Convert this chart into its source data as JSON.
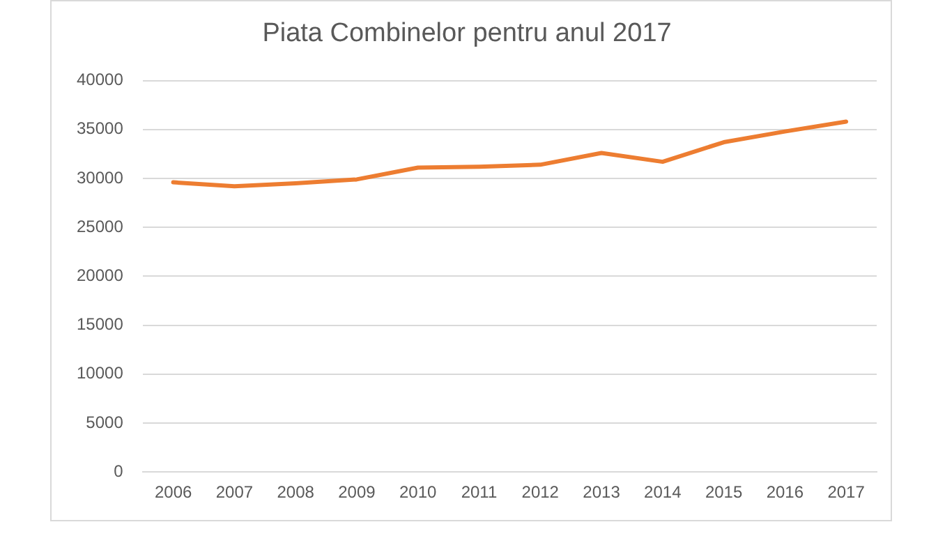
{
  "chart_data": {
    "type": "line",
    "title": "Piata Combinelor pentru anul 2017",
    "categories": [
      "2006",
      "2007",
      "2008",
      "2009",
      "2010",
      "2011",
      "2012",
      "2013",
      "2014",
      "2015",
      "2016",
      "2017"
    ],
    "series": [
      {
        "color": "#ed7d31",
        "values": [
          29600,
          29200,
          29500,
          29900,
          31100,
          31200,
          31400,
          32600,
          31700,
          33700,
          34800,
          35800
        ]
      }
    ],
    "ylim": [
      0,
      40000
    ],
    "yticks": [
      0,
      5000,
      10000,
      15000,
      20000,
      25000,
      30000,
      35000,
      40000
    ],
    "grid": "y",
    "legend": false,
    "marker": "none",
    "line_style": "solid"
  }
}
